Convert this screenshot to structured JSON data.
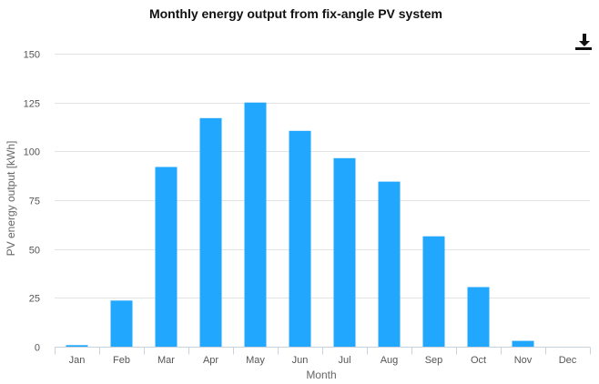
{
  "chart_data": {
    "type": "bar",
    "title": "Monthly energy output from fix-angle PV system",
    "xlabel": "Month",
    "ylabel": "PV energy output [kWh]",
    "categories": [
      "Jan",
      "Feb",
      "Mar",
      "Apr",
      "May",
      "Jun",
      "Jul",
      "Aug",
      "Sep",
      "Oct",
      "Nov",
      "Dec"
    ],
    "series": [
      {
        "values": [
          0.8,
          23.6,
          92,
          117,
          125,
          110.5,
          96.5,
          84.5,
          56.5,
          30.5,
          3,
          0
        ],
        "color": "#22a7ff"
      }
    ],
    "ylim": [
      0,
      150
    ],
    "yticks": [
      "0",
      "25",
      "50",
      "75",
      "100",
      "125",
      "150"
    ],
    "grid": true,
    "legend": "none"
  },
  "controls": {
    "download_icon": "download-icon"
  },
  "colors": {
    "bar": "#22a7ff",
    "grid": "#e3e3e3",
    "axis": "#c8d2dc",
    "title": "#111111"
  }
}
